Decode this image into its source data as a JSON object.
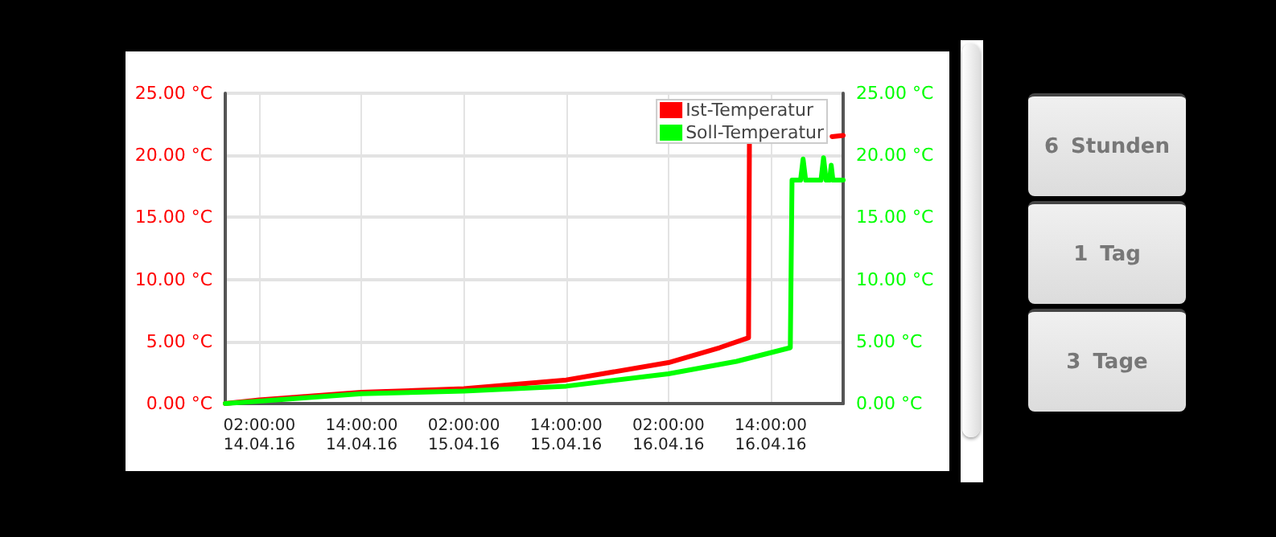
{
  "chart_data": {
    "type": "line",
    "xlim": [
      "--04-13T22:00",
      "--04-16T22:30"
    ],
    "xticks": [
      {
        "value": "--04-14T02:00",
        "label": "02:00:00\n14.04.16"
      },
      {
        "value": "--04-14T14:00",
        "label": "14:00:00\n14.04.16"
      },
      {
        "value": "--04-15T02:00",
        "label": "02:00:00\n15.04.16"
      },
      {
        "value": "--04-15T14:00",
        "label": "14:00:00\n15.04.16"
      },
      {
        "value": "--04-16T02:00",
        "label": "02:00:00\n16.04.16"
      },
      {
        "value": "--04-16T14:00",
        "label": "14:00:00\n16.04.16"
      }
    ],
    "ylim": [
      0,
      25
    ],
    "yticks": [
      {
        "value": 0,
        "label": "0.00 °C"
      },
      {
        "value": 5,
        "label": "5.00 °C"
      },
      {
        "value": 10,
        "label": "10.00 °C"
      },
      {
        "value": 15,
        "label": "15.00 °C"
      },
      {
        "value": 20,
        "label": "20.00 °C"
      },
      {
        "value": 25,
        "label": "25.00 °C"
      }
    ],
    "y2lim": [
      0,
      25
    ],
    "y2ticks": [
      {
        "value": 0,
        "label": "0.00 °C"
      },
      {
        "value": 5,
        "label": "5.00 °C"
      },
      {
        "value": 10,
        "label": "10.00 °C"
      },
      {
        "value": 15,
        "label": "15.00 °C"
      },
      {
        "value": 20,
        "label": "20.00 °C"
      },
      {
        "value": 25,
        "label": "25.00 °C"
      }
    ],
    "series": [
      {
        "name": "Ist-Temperatur",
        "color": "#ff0000",
        "x": [
          "--04-13T22:00",
          "--04-14T02:00",
          "--04-14T14:00",
          "--04-15T02:00",
          "--04-15T14:00",
          "--04-16T02:00",
          "--04-16T08:00",
          "--04-16T11:24",
          "--04-16T11:30",
          "--04-16T16:00",
          "--04-16T21:12",
          "--04-16T22:30"
        ],
        "values": [
          0.0,
          0.3,
          0.9,
          1.2,
          1.9,
          3.3,
          4.5,
          5.3,
          20.9,
          null,
          21.5,
          21.6
        ]
      },
      {
        "name": "Soll-Temperatur",
        "color": "#00ff00",
        "axis": "y2",
        "x": [
          "--04-13T22:00",
          "--04-14T02:00",
          "--04-14T14:00",
          "--04-15T02:00",
          "--04-15T14:00",
          "--04-16T02:00",
          "--04-16T10:00",
          "--04-16T16:18",
          "--04-16T16:30",
          "--04-16T17:30",
          "--04-16T17:48",
          "--04-16T18:06",
          "--04-16T19:54",
          "--04-16T20:12",
          "--04-16T20:30",
          "--04-16T20:54",
          "--04-16T21:06",
          "--04-16T21:18",
          "--04-16T22:30"
        ],
        "values": [
          0.0,
          0.2,
          0.8,
          1.0,
          1.4,
          2.4,
          3.4,
          4.5,
          18.0,
          18.0,
          19.7,
          18.0,
          18.0,
          19.8,
          18.0,
          18.0,
          19.2,
          18.0,
          18.0
        ]
      }
    ],
    "annotations": [
      "6 Stunden",
      "1 Tag",
      "3 Tage"
    ],
    "grid": true,
    "legend": "top right",
    "marker": "none",
    "line_style": "solid"
  }
}
